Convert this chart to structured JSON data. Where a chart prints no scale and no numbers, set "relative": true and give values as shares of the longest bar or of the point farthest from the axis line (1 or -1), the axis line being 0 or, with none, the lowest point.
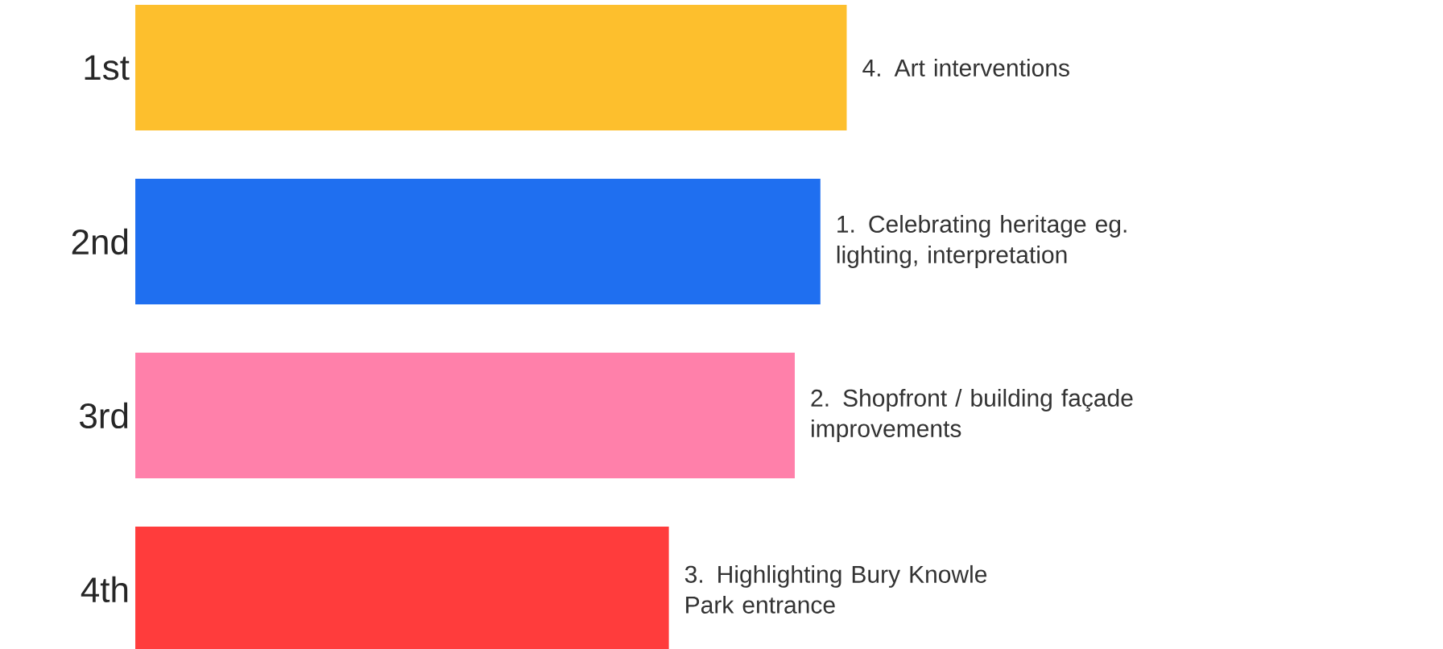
{
  "chart_data": {
    "type": "bar",
    "orientation": "horizontal",
    "relative": true,
    "categories": [
      "1st",
      "2nd",
      "3rd",
      "4th"
    ],
    "values": [
      1,
      0.963,
      0.927,
      0.75
    ],
    "colors": [
      "#fdbf2d",
      "#1f6ff0",
      "#ff80aa",
      "#ff3c3c"
    ],
    "annotations": [
      {
        "text": "4. Art interventions",
        "x": 1,
        "y": "1st"
      },
      {
        "text": "1. Celebrating heritage eg. lighting, interpretation",
        "x": 0.963,
        "y": "2nd"
      },
      {
        "text": "2. Shopfront / building façade improvements",
        "x": 0.927,
        "y": "3rd"
      },
      {
        "text": "3. Highlighting Bury Knowle Park entrance",
        "x": 0.75,
        "y": "4th"
      }
    ]
  }
}
